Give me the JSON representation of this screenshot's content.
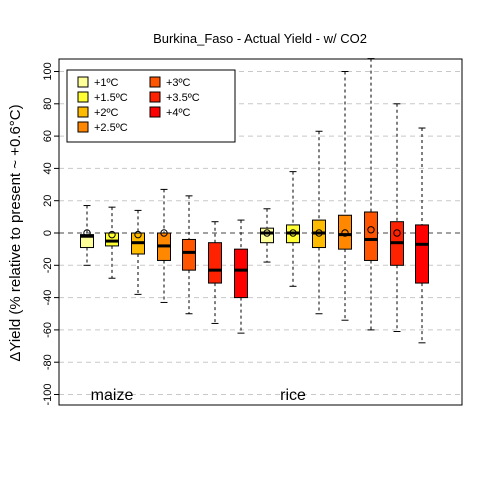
{
  "chart_data": {
    "type": "box",
    "title": "Burkina_Faso - Actual Yield - w/ CO2",
    "ylabel": "ΔYield (% relative to present ~ +0.6°C)",
    "ylim": [
      -108,
      108
    ],
    "yticks": [
      -100,
      -80,
      -60,
      -40,
      -20,
      0,
      20,
      40,
      60,
      80,
      100
    ],
    "grid": true,
    "groups": [
      {
        "label": "maize"
      },
      {
        "label": "rice"
      }
    ],
    "legend": {
      "placement": "top-left",
      "entries": [
        {
          "label": "+1ºC",
          "color": "#ffff99"
        },
        {
          "label": "+1.5ºC",
          "color": "#ffff33"
        },
        {
          "label": "+2ºC",
          "color": "#ffbb00"
        },
        {
          "label": "+2.5ºC",
          "color": "#ff8800"
        },
        {
          "label": "+3ºC",
          "color": "#ff5500"
        },
        {
          "label": "+3.5ºC",
          "color": "#ff2200"
        },
        {
          "label": "+4ºC",
          "color": "#ff0000"
        }
      ]
    },
    "series": [
      {
        "group": "maize",
        "color": "#ffff99",
        "whisker_low": -20,
        "q1": -9,
        "median": -2,
        "q3": -1,
        "whisker_high": 17,
        "mean": 0
      },
      {
        "group": "maize",
        "color": "#ffff33",
        "whisker_low": -28,
        "q1": -8,
        "median": -5,
        "q3": 0,
        "whisker_high": 16,
        "mean": -1
      },
      {
        "group": "maize",
        "color": "#ffbb00",
        "whisker_low": -38,
        "q1": -13,
        "median": -6,
        "q3": 0,
        "whisker_high": 14,
        "mean": -1
      },
      {
        "group": "maize",
        "color": "#ff8800",
        "whisker_low": -43,
        "q1": -17,
        "median": -8,
        "q3": 0,
        "whisker_high": 27,
        "mean": 0
      },
      {
        "group": "maize",
        "color": "#ff5500",
        "whisker_low": -50,
        "q1": -23,
        "median": -12,
        "q3": -4,
        "whisker_high": 23,
        "mean": null
      },
      {
        "group": "maize",
        "color": "#ff2200",
        "whisker_low": -56,
        "q1": -31,
        "median": -23,
        "q3": -6,
        "whisker_high": 7,
        "mean": null
      },
      {
        "group": "maize",
        "color": "#ff0000",
        "whisker_low": -62,
        "q1": -40,
        "median": -23,
        "q3": -10,
        "whisker_high": 8,
        "mean": null
      },
      {
        "group": "rice",
        "color": "#ffff99",
        "whisker_low": -18,
        "q1": -6,
        "median": 0,
        "q3": 3,
        "whisker_high": 15,
        "mean": 0
      },
      {
        "group": "rice",
        "color": "#ffff33",
        "whisker_low": -33,
        "q1": -6,
        "median": 0,
        "q3": 5,
        "whisker_high": 38,
        "mean": 0
      },
      {
        "group": "rice",
        "color": "#ffbb00",
        "whisker_low": -50,
        "q1": -9,
        "median": 0,
        "q3": 8,
        "whisker_high": 63,
        "mean": 0
      },
      {
        "group": "rice",
        "color": "#ff8800",
        "whisker_low": -54,
        "q1": -10,
        "median": -1,
        "q3": 11,
        "whisker_high": 100,
        "mean": 0
      },
      {
        "group": "rice",
        "color": "#ff5500",
        "whisker_low": -60,
        "q1": -17,
        "median": -4,
        "q3": 13,
        "whisker_high": 108,
        "mean": 2
      },
      {
        "group": "rice",
        "color": "#ff2200",
        "whisker_low": -61,
        "q1": -20,
        "median": -6,
        "q3": 7,
        "whisker_high": 80,
        "mean": 0
      },
      {
        "group": "rice",
        "color": "#ff0000",
        "whisker_low": -68,
        "q1": -31,
        "median": -7,
        "q3": 5,
        "whisker_high": 65,
        "mean": null
      }
    ]
  }
}
